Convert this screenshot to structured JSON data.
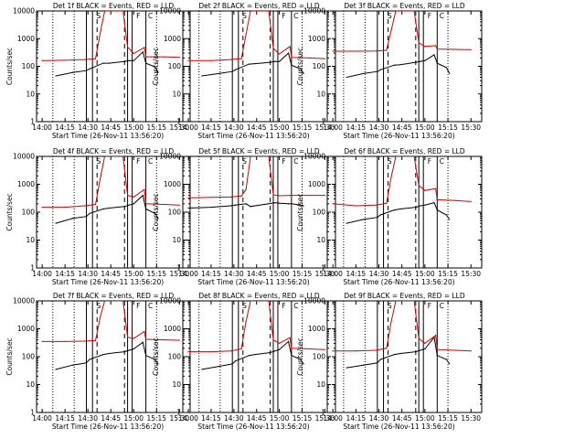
{
  "colors": {
    "events": "#000000",
    "lld": "#d40000",
    "axes": "#000000",
    "background": "#ffffff"
  },
  "shared": {
    "x_ticks": [
      "14:00",
      "14:15",
      "14:30",
      "14:45",
      "15:00",
      "15:15",
      "15:30"
    ],
    "y_ticks": [
      "1",
      "10",
      "100",
      "1000",
      "10000"
    ],
    "xlabel": "Start Time (26-Nov-11 13:56:20)",
    "ylabel": "Counts/sec",
    "title_suffix": "BLACK = Events, RED = LLD",
    "legend_letters": [
      "S",
      "F",
      "C"
    ]
  },
  "chart_data": [
    {
      "type": "line",
      "title": "Det 1f BLACK = Events, RED = LLD",
      "xlabel": "Start Time (26-Nov-11 13:56:20)",
      "ylabel": "Counts/sec",
      "yscale": "log",
      "ylim": [
        1,
        10000
      ],
      "xlim": [
        "13:56:20",
        "15:37:00"
      ],
      "vlines": {
        "solid": [
          "14:29",
          "14:33",
          "14:56",
          "14:59",
          "15:08"
        ],
        "dashed": [
          "14:36",
          "14:54"
        ],
        "dotted": [
          "14:07",
          "14:21",
          "15:15"
        ]
      },
      "series": [
        {
          "name": "Events",
          "color": "black",
          "x": [
            "14:09",
            "14:20",
            "14:29",
            "14:31",
            "14:40",
            "14:44",
            "14:54",
            "14:57",
            "15:00",
            "15:06",
            "15:08",
            "15:14",
            "15:16"
          ],
          "y": [
            45,
            60,
            70,
            80,
            130,
            130,
            150,
            160,
            160,
            330,
            130,
            95,
            60
          ]
        },
        {
          "name": "LLD",
          "color": "red",
          "x": [
            "14:00",
            "14:15",
            "14:28",
            "14:35",
            "14:38",
            "14:41",
            "14:48",
            "14:53",
            "14:56",
            "15:00",
            "15:07",
            "15:08",
            "15:20",
            "15:30"
          ],
          "y": [
            160,
            165,
            175,
            190,
            1500,
            10000,
            10000,
            10000,
            500,
            290,
            480,
            220,
            220,
            210
          ]
        }
      ]
    },
    {
      "type": "line",
      "title": "Det 2f BLACK = Events, RED = LLD",
      "xlabel": "Start Time (26-Nov-11 13:56:20)",
      "ylabel": "Counts/sec",
      "yscale": "log",
      "ylim": [
        1,
        10000
      ],
      "xlim": [
        "13:56:20",
        "15:37:00"
      ],
      "vlines": {
        "solid": [
          "14:29",
          "14:33",
          "14:56",
          "14:59",
          "15:08"
        ],
        "dashed": [
          "14:36",
          "14:54"
        ],
        "dotted": [
          "14:07",
          "14:21",
          "15:15"
        ]
      },
      "series": [
        {
          "name": "Events",
          "color": "black",
          "x": [
            "14:09",
            "14:20",
            "14:29",
            "14:31",
            "14:40",
            "14:44",
            "14:54",
            "14:57",
            "15:00",
            "15:06",
            "15:08",
            "15:14",
            "15:16"
          ],
          "y": [
            45,
            55,
            65,
            75,
            120,
            125,
            140,
            150,
            150,
            300,
            110,
            80,
            55
          ]
        },
        {
          "name": "LLD",
          "color": "red",
          "x": [
            "14:00",
            "14:15",
            "14:28",
            "14:35",
            "14:38",
            "14:41",
            "14:48",
            "14:53",
            "14:56",
            "15:00",
            "15:07",
            "15:08",
            "15:20",
            "15:30"
          ],
          "y": [
            160,
            160,
            175,
            190,
            1400,
            10000,
            10000,
            10000,
            450,
            280,
            520,
            210,
            200,
            190
          ]
        }
      ]
    },
    {
      "type": "line",
      "title": "Det 3f BLACK = Events, RED = LLD",
      "xlabel": "Start Time (26-Nov-11 13:56:20)",
      "ylabel": "Counts/sec",
      "yscale": "log",
      "ylim": [
        1,
        10000
      ],
      "xlim": [
        "13:56:20",
        "15:37:00"
      ],
      "vlines": {
        "solid": [
          "14:29",
          "14:33",
          "14:56",
          "14:59",
          "15:08"
        ],
        "dashed": [
          "14:36",
          "14:54"
        ],
        "dotted": [
          "14:07",
          "14:21",
          "15:15"
        ]
      },
      "series": [
        {
          "name": "Events",
          "color": "black",
          "x": [
            "14:09",
            "14:20",
            "14:29",
            "14:31",
            "14:40",
            "14:44",
            "14:54",
            "14:57",
            "15:00",
            "15:06",
            "15:08",
            "15:14",
            "15:16"
          ],
          "y": [
            40,
            55,
            65,
            75,
            110,
            115,
            140,
            150,
            160,
            260,
            130,
            90,
            55
          ]
        },
        {
          "name": "LLD",
          "color": "red",
          "x": [
            "14:00",
            "14:15",
            "14:28",
            "14:35",
            "14:38",
            "14:41",
            "14:48",
            "14:53",
            "14:56",
            "15:00",
            "15:07",
            "15:08",
            "15:20",
            "15:30"
          ],
          "y": [
            350,
            350,
            360,
            380,
            2000,
            10000,
            10000,
            10000,
            700,
            520,
            560,
            420,
            410,
            400
          ]
        }
      ]
    },
    {
      "type": "line",
      "title": "Det 4f BLACK = Events, RED = LLD",
      "xlabel": "Start Time (26-Nov-11 13:56:20)",
      "ylabel": "Counts/sec",
      "yscale": "log",
      "ylim": [
        1,
        10000
      ],
      "xlim": [
        "13:56:20",
        "15:37:00"
      ],
      "vlines": {
        "solid": [
          "14:29",
          "14:33",
          "14:56",
          "14:59",
          "15:08"
        ],
        "dashed": [
          "14:36",
          "14:54"
        ],
        "dotted": [
          "14:07",
          "14:21",
          "15:15"
        ]
      },
      "series": [
        {
          "name": "Events",
          "color": "black",
          "x": [
            "14:09",
            "14:20",
            "14:29",
            "14:31",
            "14:40",
            "14:44",
            "14:54",
            "14:57",
            "15:00",
            "15:06",
            "15:08",
            "15:14",
            "15:16"
          ],
          "y": [
            40,
            60,
            70,
            90,
            130,
            140,
            160,
            180,
            200,
            400,
            130,
            90,
            60
          ]
        },
        {
          "name": "LLD",
          "color": "red",
          "x": [
            "14:00",
            "14:15",
            "14:28",
            "14:35",
            "14:38",
            "14:41",
            "14:48",
            "14:53",
            "14:56",
            "15:00",
            "15:07",
            "15:08",
            "15:20",
            "15:30"
          ],
          "y": [
            150,
            150,
            170,
            190,
            1500,
            10000,
            10000,
            10000,
            400,
            350,
            650,
            200,
            190,
            180
          ]
        }
      ]
    },
    {
      "type": "line",
      "title": "Det 5f BLACK = Events, RED = LLD",
      "xlabel": "Start Time (26-Nov-11 13:56:20)",
      "ylabel": "Counts/sec",
      "yscale": "log",
      "ylim": [
        1,
        10000
      ],
      "xlim": [
        "13:56:20",
        "15:37:00"
      ],
      "vlines": {
        "solid": [
          "14:29",
          "14:33",
          "14:56",
          "14:59",
          "15:08"
        ],
        "dashed": [
          "14:36",
          "14:54"
        ],
        "dotted": [
          "14:07",
          "14:21",
          "15:15"
        ]
      },
      "series": [
        {
          "name": "Events",
          "color": "black",
          "x": [
            "14:00",
            "14:15",
            "14:28",
            "14:31",
            "14:38",
            "14:41",
            "14:53",
            "14:57",
            "15:00",
            "15:06",
            "15:08",
            "15:14",
            "15:16"
          ],
          "y": [
            140,
            150,
            170,
            180,
            200,
            160,
            200,
            220,
            210,
            200,
            200,
            180,
            170
          ]
        },
        {
          "name": "LLD",
          "color": "red",
          "x": [
            "14:00",
            "14:15",
            "14:28",
            "14:35",
            "14:38",
            "14:41",
            "14:48",
            "14:53",
            "14:56",
            "15:00",
            "15:07",
            "15:08",
            "15:20",
            "15:30"
          ],
          "y": [
            330,
            340,
            350,
            380,
            650,
            10000,
            10000,
            10000,
            420,
            390,
            400,
            400,
            400,
            400
          ]
        }
      ]
    },
    {
      "type": "line",
      "title": "Det 6f BLACK = Events, RED = LLD",
      "xlabel": "Start Time (26-Nov-11 13:56:20)",
      "ylabel": "Counts/sec",
      "yscale": "log",
      "ylim": [
        1,
        10000
      ],
      "xlim": [
        "13:56:20",
        "15:37:00"
      ],
      "vlines": {
        "solid": [
          "14:29",
          "14:33",
          "14:56",
          "14:59",
          "15:08"
        ],
        "dashed": [
          "14:36",
          "14:54"
        ],
        "dotted": [
          "14:07",
          "14:21",
          "15:15"
        ]
      },
      "series": [
        {
          "name": "Events",
          "color": "black",
          "x": [
            "14:09",
            "14:20",
            "14:29",
            "14:31",
            "14:40",
            "14:44",
            "14:54",
            "14:57",
            "15:00",
            "15:06",
            "15:08",
            "15:14",
            "15:16"
          ],
          "y": [
            40,
            55,
            65,
            80,
            120,
            130,
            150,
            170,
            180,
            220,
            120,
            80,
            55
          ]
        },
        {
          "name": "LLD",
          "color": "red",
          "x": [
            "14:00",
            "14:15",
            "14:28",
            "14:35",
            "14:38",
            "14:41",
            "14:48",
            "14:53",
            "14:56",
            "15:00",
            "15:07",
            "15:08",
            "15:20",
            "15:30"
          ],
          "y": [
            200,
            170,
            180,
            210,
            1800,
            10000,
            10000,
            10000,
            900,
            600,
            700,
            280,
            260,
            240
          ]
        }
      ]
    },
    {
      "type": "line",
      "title": "Det 7f BLACK = Events, RED = LLD",
      "xlabel": "Start Time (26-Nov-11 13:56:20)",
      "ylabel": "Counts/sec",
      "yscale": "log",
      "ylim": [
        1,
        10000
      ],
      "xlim": [
        "13:56:20",
        "15:37:00"
      ],
      "vlines": {
        "solid": [
          "14:29",
          "14:33",
          "14:56",
          "14:59",
          "15:08"
        ],
        "dashed": [
          "14:36",
          "14:54"
        ],
        "dotted": [
          "14:07",
          "14:21",
          "15:15"
        ]
      },
      "series": [
        {
          "name": "Events",
          "color": "black",
          "x": [
            "14:09",
            "14:20",
            "14:29",
            "14:31",
            "14:40",
            "14:44",
            "14:54",
            "14:57",
            "15:00",
            "15:06",
            "15:08",
            "15:14",
            "15:16"
          ],
          "y": [
            35,
            50,
            60,
            80,
            120,
            130,
            150,
            170,
            190,
            330,
            110,
            80,
            55
          ]
        },
        {
          "name": "LLD",
          "color": "red",
          "x": [
            "14:00",
            "14:15",
            "14:28",
            "14:35",
            "14:38",
            "14:41",
            "14:48",
            "14:53",
            "14:56",
            "15:00",
            "15:07",
            "15:08",
            "15:20",
            "15:30"
          ],
          "y": [
            350,
            350,
            360,
            380,
            2500,
            10000,
            10000,
            10000,
            500,
            450,
            800,
            420,
            400,
            390
          ]
        }
      ]
    },
    {
      "type": "line",
      "title": "Det 8f BLACK = Events, RED = LLD",
      "xlabel": "Start Time (26-Nov-11 13:56:20)",
      "ylabel": "Counts/sec",
      "yscale": "log",
      "ylim": [
        1,
        10000
      ],
      "xlim": [
        "13:56:20",
        "15:37:00"
      ],
      "vlines": {
        "solid": [
          "14:29",
          "14:33",
          "14:56",
          "14:59",
          "15:08"
        ],
        "dashed": [
          "14:36",
          "14:54"
        ],
        "dotted": [
          "14:07",
          "14:21",
          "15:15"
        ]
      },
      "series": [
        {
          "name": "Events",
          "color": "black",
          "x": [
            "14:09",
            "14:20",
            "14:29",
            "14:31",
            "14:40",
            "14:44",
            "14:54",
            "14:57",
            "15:00",
            "15:06",
            "15:08",
            "15:14",
            "15:16"
          ],
          "y": [
            35,
            45,
            55,
            70,
            110,
            120,
            140,
            160,
            180,
            350,
            110,
            80,
            55
          ]
        },
        {
          "name": "LLD",
          "color": "red",
          "x": [
            "14:00",
            "14:15",
            "14:28",
            "14:35",
            "14:38",
            "14:41",
            "14:48",
            "14:53",
            "14:56",
            "15:00",
            "15:07",
            "15:08",
            "15:20",
            "15:30"
          ],
          "y": [
            150,
            150,
            160,
            190,
            1800,
            10000,
            10000,
            10000,
            400,
            300,
            480,
            200,
            190,
            180
          ]
        }
      ]
    },
    {
      "type": "line",
      "title": "Det 9f BLACK = Events, RED = LLD",
      "xlabel": "Start Time (26-Nov-11 13:56:20)",
      "ylabel": "Counts/sec",
      "yscale": "log",
      "ylim": [
        1,
        10000
      ],
      "xlim": [
        "13:56:20",
        "15:37:00"
      ],
      "vlines": {
        "solid": [
          "14:29",
          "14:33",
          "14:56",
          "14:59",
          "15:08"
        ],
        "dashed": [
          "14:36",
          "14:54"
        ],
        "dotted": [
          "14:07",
          "14:21",
          "15:15"
        ]
      },
      "series": [
        {
          "name": "Events",
          "color": "black",
          "x": [
            "14:09",
            "14:20",
            "14:29",
            "14:31",
            "14:40",
            "14:44",
            "14:54",
            "14:57",
            "15:00",
            "15:06",
            "15:08",
            "15:14",
            "15:16"
          ],
          "y": [
            40,
            50,
            60,
            80,
            120,
            130,
            150,
            170,
            190,
            500,
            110,
            80,
            55
          ]
        },
        {
          "name": "LLD",
          "color": "red",
          "x": [
            "14:00",
            "14:15",
            "14:28",
            "14:35",
            "14:38",
            "14:41",
            "14:48",
            "14:53",
            "14:56",
            "15:00",
            "15:07",
            "15:08",
            "15:20",
            "15:30"
          ],
          "y": [
            160,
            160,
            170,
            200,
            1800,
            10000,
            10000,
            10000,
            450,
            300,
            580,
            180,
            170,
            160
          ]
        }
      ]
    }
  ]
}
